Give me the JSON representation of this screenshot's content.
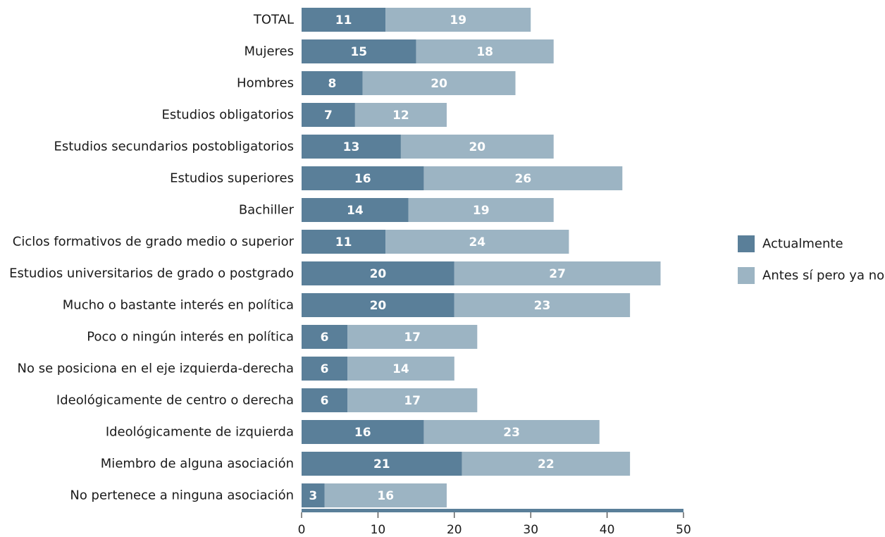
{
  "chart_data": {
    "type": "bar",
    "orientation": "horizontal",
    "stacked": true,
    "title": "",
    "xlabel": "",
    "ylabel": "",
    "xlim": [
      0,
      50
    ],
    "xticks": [
      0,
      10,
      20,
      30,
      40,
      50
    ],
    "grid": false,
    "legend_position": "right",
    "categories": [
      "TOTAL",
      "Mujeres",
      "Hombres",
      "Estudios obligatorios",
      "Estudios secundarios postobligatorios",
      "Estudios superiores",
      "Bachiller",
      "Ciclos formativos de grado medio o superior",
      "Estudios universitarios de grado o postgrado",
      "Mucho o bastante interés en política",
      "Poco o ningún interés en política",
      "No se posiciona en el eje izquierda-derecha",
      "Ideológicamente de centro o derecha",
      "Ideológicamente de izquierda",
      "Miembro de alguna asociación",
      "No pertenece a ninguna asociación"
    ],
    "series": [
      {
        "name": "Actualmente",
        "color": "#5a7f99",
        "values": [
          11,
          15,
          8,
          7,
          13,
          16,
          14,
          11,
          20,
          20,
          6,
          6,
          6,
          16,
          21,
          3
        ]
      },
      {
        "name": "Antes sí pero ya no",
        "color": "#9cb4c3",
        "values": [
          19,
          18,
          20,
          12,
          20,
          26,
          19,
          24,
          27,
          23,
          17,
          14,
          17,
          23,
          22,
          16
        ]
      }
    ],
    "axis_color": "#5a7f99"
  }
}
